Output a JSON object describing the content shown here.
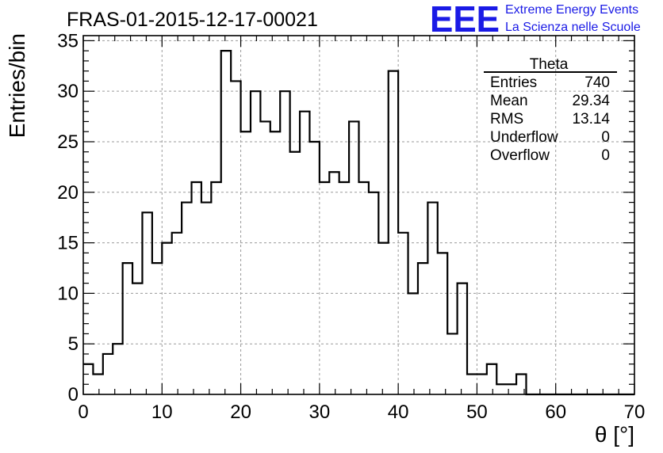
{
  "title": "FRAS-01-2015-12-17-00021",
  "logo": {
    "letters": "EEE",
    "line1": "Extreme Energy Events",
    "line2": "La Scienza nelle Scuole",
    "color": "#1a1ae6"
  },
  "stats_box": {
    "name": "Theta",
    "rows": [
      {
        "label": "Entries",
        "value": "740"
      },
      {
        "label": "Mean",
        "value": "29.34"
      },
      {
        "label": "RMS",
        "value": "13.14"
      },
      {
        "label": "Underflow",
        "value": "0"
      },
      {
        "label": "Overflow",
        "value": "0"
      }
    ]
  },
  "chart_data": {
    "type": "histogram",
    "title": "FRAS-01-2015-12-17-00021",
    "xlabel": "θ [°]",
    "ylabel": "Entries/bin",
    "xlim": [
      0,
      70
    ],
    "ylim": [
      0,
      35.5
    ],
    "bin_width": 1.25,
    "x_ticks": [
      0,
      10,
      20,
      30,
      40,
      50,
      60,
      70
    ],
    "y_ticks": [
      0,
      5,
      10,
      15,
      20,
      25,
      30,
      35
    ],
    "grid": true,
    "line_color": "#000000",
    "values": [
      3,
      2,
      4,
      5,
      13,
      11,
      18,
      13,
      15,
      16,
      19,
      21,
      19,
      21,
      34,
      31,
      26,
      30,
      27,
      26,
      30,
      24,
      28,
      25,
      21,
      22,
      21,
      27,
      21,
      20,
      15,
      32,
      16,
      10,
      13,
      19,
      14,
      6,
      11,
      2,
      2,
      3,
      1,
      1,
      2,
      0,
      0,
      0,
      0,
      0,
      0,
      0,
      0,
      0,
      0,
      0
    ]
  }
}
